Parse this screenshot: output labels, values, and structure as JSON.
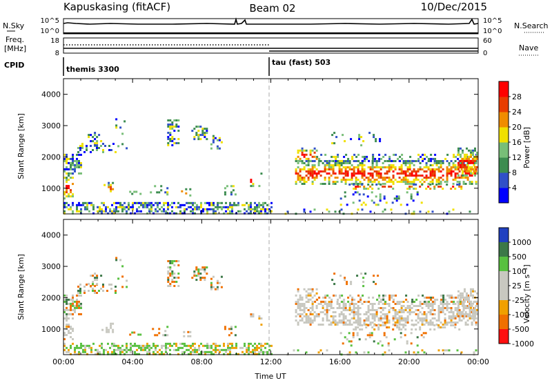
{
  "header": {
    "station": "Kapuskasing (fitACF)",
    "beam": "Beam 02",
    "date": "10/Dec/2015"
  },
  "panels": {
    "nsky": {
      "label": "N.Sky",
      "right_label": "N.Search",
      "ticks": [
        "10^5",
        "10^0"
      ]
    },
    "freq": {
      "label_line1": "Freq.",
      "label_line2": "[MHz]",
      "right_label": "Nave",
      "left_ticks": [
        "18",
        "8"
      ],
      "right_ticks": [
        "60",
        "0"
      ]
    },
    "cpid": {
      "label": "CPID",
      "modes": [
        "themis 3300",
        "tau (fast) 503"
      ]
    }
  },
  "chart_data": [
    {
      "type": "heatmap",
      "panel": "power",
      "ylabel": "Slant Range [km]",
      "yticks": [
        "4000",
        "3000",
        "2000",
        "1000"
      ],
      "ylim": [
        180,
        4500
      ],
      "xlim": [
        0,
        24
      ],
      "xticks": [
        "00:00",
        "04:00",
        "08:00",
        "12:00",
        "16:00",
        "20:00",
        "00:00"
      ],
      "colorbar": {
        "label": "Power [dB]",
        "ticks": [
          "28",
          "24",
          "20",
          "16",
          "12",
          "8",
          "4"
        ],
        "colors": [
          "#0000ff",
          "#3050c8",
          "#3c8c50",
          "#78be78",
          "#f0e000",
          "#f08c00",
          "#e83c00",
          "#ff0000"
        ]
      }
    },
    {
      "type": "heatmap",
      "panel": "velocity",
      "ylabel": "Slant Range [km]",
      "yticks": [
        "4000",
        "3000",
        "2000",
        "1000"
      ],
      "ylim": [
        180,
        4500
      ],
      "xlim": [
        0,
        24
      ],
      "xlabel": "Time UT",
      "xticks": [
        "00:00",
        "04:00",
        "08:00",
        "12:00",
        "16:00",
        "20:00",
        "00:00"
      ],
      "colorbar": {
        "label": "Velocity [m s⁻¹]",
        "ticks": [
          "1000",
          "500",
          "100",
          "25",
          "-25",
          "-100",
          "-500",
          "-1000"
        ],
        "colors": [
          "#2040c0",
          "#3c7848",
          "#58c040",
          "#c8c8c0",
          "#c8c8c0",
          "#f0a000",
          "#f07000",
          "#ff1010"
        ]
      }
    }
  ],
  "colors": {
    "ground_scatter": "#b8b8b0",
    "axis": "#000000",
    "mode_divider": "#999999"
  }
}
